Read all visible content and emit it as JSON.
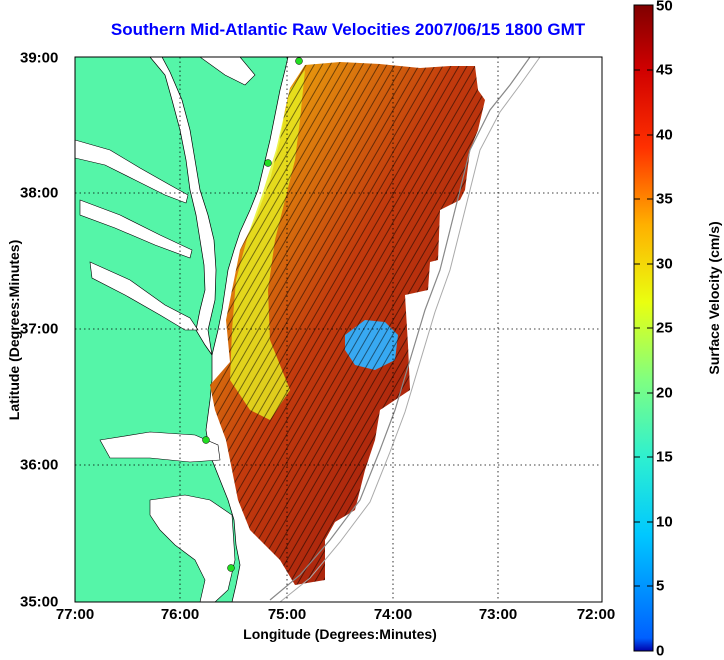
{
  "title": "Southern Mid-Atlantic Raw Velocities 2007/06/15 1800 GMT",
  "x_axis_label": "Longitude (Degrees:Minutes)",
  "y_axis_label": "Latitude (Degrees:Minutes)",
  "x_ticks": [
    "77:00",
    "76:00",
    "75:00",
    "74:00",
    "73:00",
    "72:00"
  ],
  "y_ticks": [
    "39:00",
    "38:00",
    "37:00",
    "36:00",
    "35:00"
  ],
  "colorbar": {
    "label": "Surface Velocity (cm/s)",
    "ticks": [
      "0",
      "5",
      "10",
      "15",
      "20",
      "25",
      "30",
      "35",
      "40",
      "45",
      "50"
    ],
    "range": [
      0,
      50
    ],
    "colormap": "jet"
  },
  "colors": {
    "land": "#55f5a8",
    "water": "#ffffff",
    "title": "#0000ff",
    "station": "#22dd22"
  },
  "map_extent": {
    "lon": [
      -77,
      -72
    ],
    "lat": [
      35,
      39
    ]
  }
}
